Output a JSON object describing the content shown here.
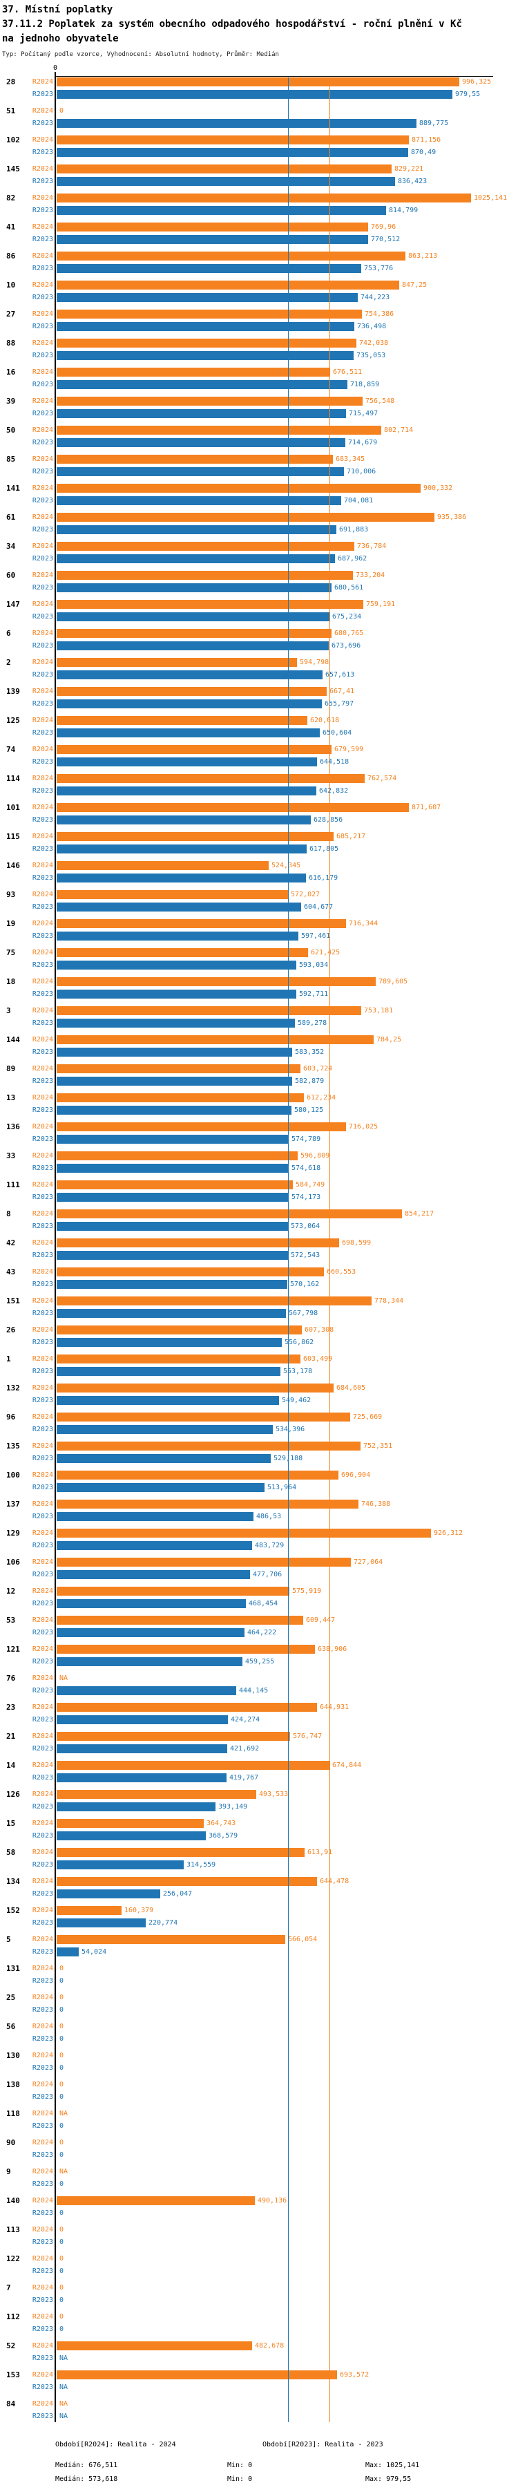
{
  "header": {
    "line1": "37. Místní poplatky",
    "line2": "37.11.2 Poplatek za systém obecního odpadového hospodářství  - roční plnění v Kč na jednoho obyvatele",
    "line3": "Typ: Počítaný podle vzorce, Vyhodnocení: Absolutní hodnoty, Průměr: Medián"
  },
  "chart_data": {
    "type": "bar",
    "orientation": "horizontal",
    "title": "37.11.2 Poplatek za systém obecního odpadového hospodářství - roční plnění v Kč na jednoho obyvatele",
    "axis_zero_label": "0",
    "legend_position": "bottom",
    "grid": "median-lines-only",
    "xlim": [
      0,
      1080
    ],
    "series": [
      {
        "name": "R2024",
        "color": "#F5821F",
        "median": 676.511,
        "min": 0,
        "max": 1025.141
      },
      {
        "name": "R2023",
        "color": "#2076B4",
        "median": 573.618,
        "min": 0,
        "max": 979.55
      }
    ],
    "groups": [
      {
        "id": "28",
        "r2024": "996,325",
        "r2023": "979,55"
      },
      {
        "id": "51",
        "r2024": "0",
        "r2023": "889,775"
      },
      {
        "id": "102",
        "r2024": "871,156",
        "r2023": "870,49"
      },
      {
        "id": "145",
        "r2024": "829,221",
        "r2023": "836,423"
      },
      {
        "id": "82",
        "r2024": "1025,141",
        "r2023": "814,799"
      },
      {
        "id": "41",
        "r2024": "769,96",
        "r2023": "770,512"
      },
      {
        "id": "86",
        "r2024": "863,213",
        "r2023": "753,776"
      },
      {
        "id": "10",
        "r2024": "847,25",
        "r2023": "744,223"
      },
      {
        "id": "27",
        "r2024": "754,386",
        "r2023": "736,498"
      },
      {
        "id": "88",
        "r2024": "742,038",
        "r2023": "735,053"
      },
      {
        "id": "16",
        "r2024": "676,511",
        "r2023": "718,859"
      },
      {
        "id": "39",
        "r2024": "756,548",
        "r2023": "715,497"
      },
      {
        "id": "50",
        "r2024": "802,714",
        "r2023": "714,679"
      },
      {
        "id": "85",
        "r2024": "683,345",
        "r2023": "710,006"
      },
      {
        "id": "141",
        "r2024": "900,332",
        "r2023": "704,081"
      },
      {
        "id": "61",
        "r2024": "935,386",
        "r2023": "691,883"
      },
      {
        "id": "34",
        "r2024": "736,784",
        "r2023": "687,962"
      },
      {
        "id": "60",
        "r2024": "733,204",
        "r2023": "680,561"
      },
      {
        "id": "147",
        "r2024": "759,191",
        "r2023": "675,234"
      },
      {
        "id": "6",
        "r2024": "680,765",
        "r2023": "673,696"
      },
      {
        "id": "2",
        "r2024": "594,798",
        "r2023": "657,613"
      },
      {
        "id": "139",
        "r2024": "667,41",
        "r2023": "655,797"
      },
      {
        "id": "125",
        "r2024": "620,618",
        "r2023": "650,604"
      },
      {
        "id": "74",
        "r2024": "679,599",
        "r2023": "644,518"
      },
      {
        "id": "114",
        "r2024": "762,574",
        "r2023": "642,832"
      },
      {
        "id": "101",
        "r2024": "871,607",
        "r2023": "628,856"
      },
      {
        "id": "115",
        "r2024": "685,217",
        "r2023": "617,805"
      },
      {
        "id": "146",
        "r2024": "524,345",
        "r2023": "616,179"
      },
      {
        "id": "93",
        "r2024": "572,027",
        "r2023": "604,677"
      },
      {
        "id": "19",
        "r2024": "716,344",
        "r2023": "597,461"
      },
      {
        "id": "75",
        "r2024": "621,425",
        "r2023": "593,034"
      },
      {
        "id": "18",
        "r2024": "789,605",
        "r2023": "592,711"
      },
      {
        "id": "3",
        "r2024": "753,181",
        "r2023": "589,278"
      },
      {
        "id": "144",
        "r2024": "784,25",
        "r2023": "583,352"
      },
      {
        "id": "89",
        "r2024": "603,724",
        "r2023": "582,879"
      },
      {
        "id": "13",
        "r2024": "612,234",
        "r2023": "580,125"
      },
      {
        "id": "136",
        "r2024": "716,025",
        "r2023": "574,789"
      },
      {
        "id": "33",
        "r2024": "596,809",
        "r2023": "574,618"
      },
      {
        "id": "111",
        "r2024": "584,749",
        "r2023": "574,173"
      },
      {
        "id": "8",
        "r2024": "854,217",
        "r2023": "573,064"
      },
      {
        "id": "42",
        "r2024": "698,599",
        "r2023": "572,543"
      },
      {
        "id": "43",
        "r2024": "660,553",
        "r2023": "570,162"
      },
      {
        "id": "151",
        "r2024": "778,344",
        "r2023": "567,798"
      },
      {
        "id": "26",
        "r2024": "607,308",
        "r2023": "556,862"
      },
      {
        "id": "1",
        "r2024": "603,499",
        "r2023": "553,178"
      },
      {
        "id": "132",
        "r2024": "684,605",
        "r2023": "549,462"
      },
      {
        "id": "96",
        "r2024": "725,669",
        "r2023": "534,396"
      },
      {
        "id": "135",
        "r2024": "752,351",
        "r2023": "529,188"
      },
      {
        "id": "100",
        "r2024": "696,904",
        "r2023": "513,964"
      },
      {
        "id": "137",
        "r2024": "746,388",
        "r2023": "486,53"
      },
      {
        "id": "129",
        "r2024": "926,312",
        "r2023": "483,729"
      },
      {
        "id": "106",
        "r2024": "727,064",
        "r2023": "477,706"
      },
      {
        "id": "12",
        "r2024": "575,919",
        "r2023": "468,454"
      },
      {
        "id": "53",
        "r2024": "609,447",
        "r2023": "464,222"
      },
      {
        "id": "121",
        "r2024": "638,906",
        "r2023": "459,255"
      },
      {
        "id": "76",
        "r2024": "NA",
        "r2023": "444,145"
      },
      {
        "id": "23",
        "r2024": "644,931",
        "r2023": "424,274"
      },
      {
        "id": "21",
        "r2024": "576,747",
        "r2023": "421,692"
      },
      {
        "id": "14",
        "r2024": "674,844",
        "r2023": "419,767"
      },
      {
        "id": "126",
        "r2024": "493,533",
        "r2023": "393,149"
      },
      {
        "id": "15",
        "r2024": "364,743",
        "r2023": "368,579"
      },
      {
        "id": "58",
        "r2024": "613,91",
        "r2023": "314,559"
      },
      {
        "id": "134",
        "r2024": "644,478",
        "r2023": "256,047"
      },
      {
        "id": "152",
        "r2024": "160,379",
        "r2023": "220,774"
      },
      {
        "id": "5",
        "r2024": "566,054",
        "r2023": "54,024"
      },
      {
        "id": "131",
        "r2024": "0",
        "r2023": "0"
      },
      {
        "id": "25",
        "r2024": "0",
        "r2023": "0"
      },
      {
        "id": "56",
        "r2024": "0",
        "r2023": "0"
      },
      {
        "id": "130",
        "r2024": "0",
        "r2023": "0"
      },
      {
        "id": "138",
        "r2024": "0",
        "r2023": "0"
      },
      {
        "id": "118",
        "r2024": "NA",
        "r2023": "0"
      },
      {
        "id": "90",
        "r2024": "0",
        "r2023": "0"
      },
      {
        "id": "9",
        "r2024": "NA",
        "r2023": "0"
      },
      {
        "id": "140",
        "r2024": "490,136",
        "r2023": "0"
      },
      {
        "id": "113",
        "r2024": "0",
        "r2023": "0"
      },
      {
        "id": "122",
        "r2024": "0",
        "r2023": "0"
      },
      {
        "id": "7",
        "r2024": "0",
        "r2023": "0"
      },
      {
        "id": "112",
        "r2024": "0",
        "r2023": "0"
      },
      {
        "id": "52",
        "r2024": "482,678",
        "r2023": "NA"
      },
      {
        "id": "153",
        "r2024": "693,572",
        "r2023": "NA"
      },
      {
        "id": "84",
        "r2024": "NA",
        "r2023": "NA"
      }
    ]
  },
  "legend": {
    "period_2024": "Období[R2024]: Realita - 2024",
    "period_2023": "Období[R2023]: Realita - 2023",
    "stats_2024": {
      "median": "Medián: 676,511",
      "min": "Min: 0",
      "max": "Max: 1025,141"
    },
    "stats_2023": {
      "median": "Medián: 573,618",
      "min": "Min: 0",
      "max": "Max: 979,55"
    }
  }
}
